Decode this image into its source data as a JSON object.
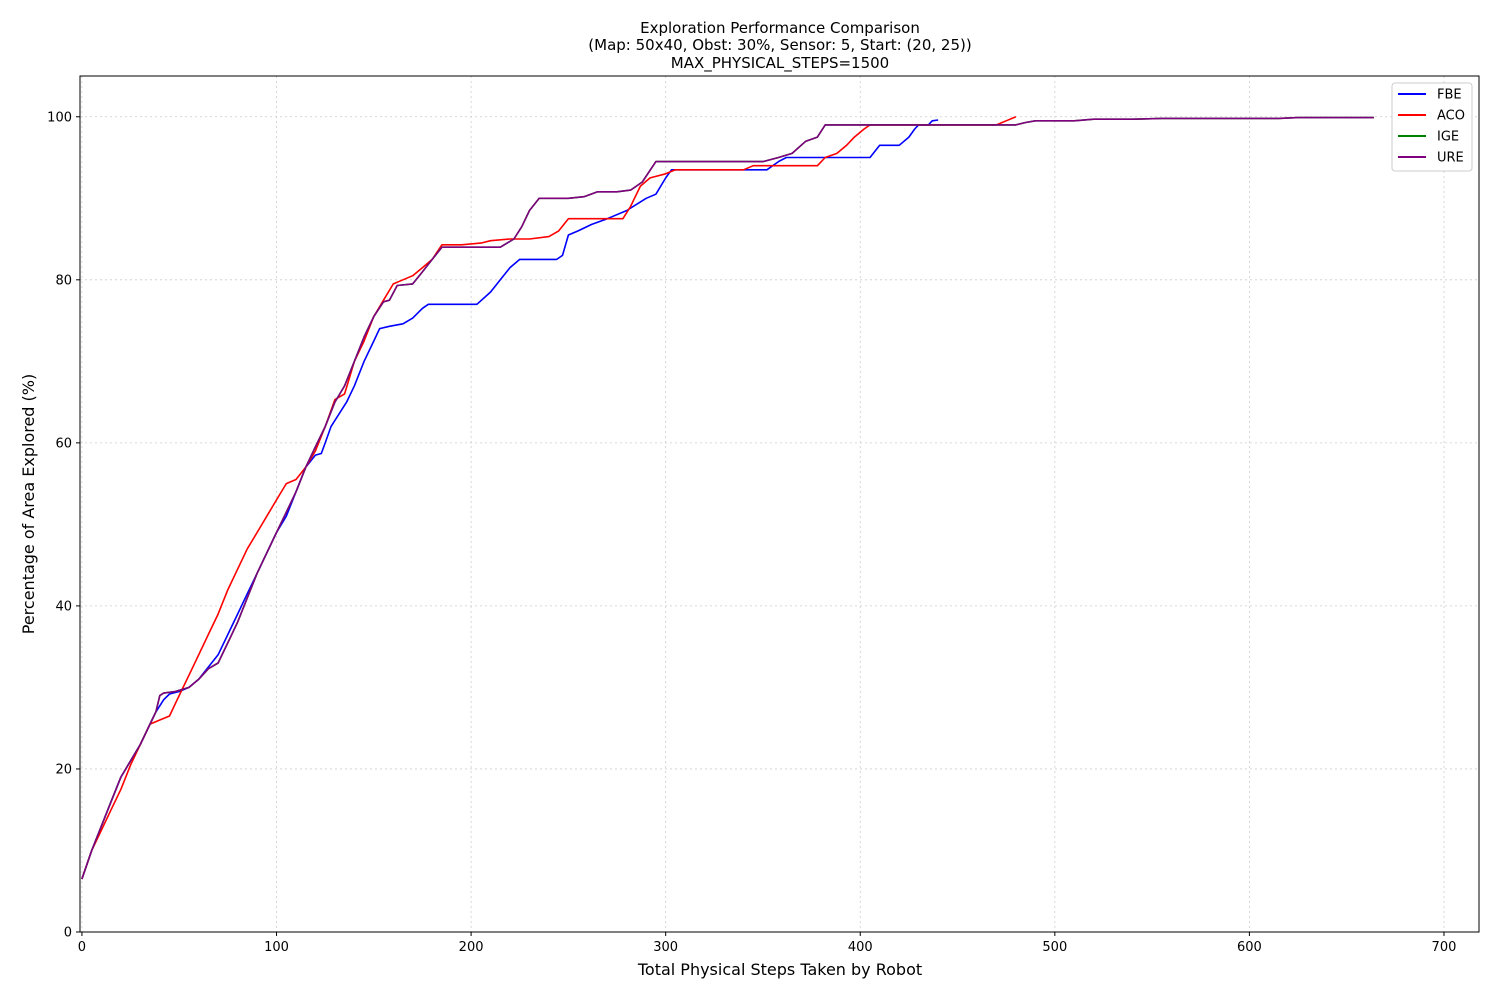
{
  "chart_data": {
    "type": "line",
    "title_lines": [
      "Exploration Performance Comparison",
      "(Map: 50x40, Obst: 30%, Sensor: 5, Start: (20, 25))",
      "MAX_PHYSICAL_STEPS=1500"
    ],
    "xlabel": "Total Physical Steps Taken by Robot",
    "ylabel": "Percentage of Area Explored (%)",
    "xlim": [
      -1,
      718
    ],
    "ylim": [
      0,
      105
    ],
    "xticks": [
      0,
      100,
      200,
      300,
      400,
      500,
      600,
      700
    ],
    "yticks": [
      0,
      20,
      40,
      60,
      80,
      100
    ],
    "grid": true,
    "legend_position": "top-right",
    "series": [
      {
        "name": "FBE",
        "color": "#0000ff",
        "points": [
          [
            0,
            6.5
          ],
          [
            5,
            10
          ],
          [
            10,
            13
          ],
          [
            15,
            16
          ],
          [
            20,
            19
          ],
          [
            25,
            21
          ],
          [
            30,
            23
          ],
          [
            35,
            25.5
          ],
          [
            38,
            27
          ],
          [
            42,
            28.5
          ],
          [
            45,
            29.2
          ],
          [
            50,
            29.5
          ],
          [
            55,
            30
          ],
          [
            60,
            31
          ],
          [
            65,
            32.5
          ],
          [
            70,
            34
          ],
          [
            75,
            36.5
          ],
          [
            80,
            39
          ],
          [
            85,
            41.5
          ],
          [
            90,
            44
          ],
          [
            95,
            46.5
          ],
          [
            100,
            49
          ],
          [
            105,
            51
          ],
          [
            110,
            54
          ],
          [
            115,
            57
          ],
          [
            120,
            58.5
          ],
          [
            123,
            58.7
          ],
          [
            125,
            60
          ],
          [
            128,
            62
          ],
          [
            132,
            63.5
          ],
          [
            136,
            65
          ],
          [
            140,
            67
          ],
          [
            145,
            70
          ],
          [
            150,
            72.5
          ],
          [
            153,
            74
          ],
          [
            158,
            74.3
          ],
          [
            165,
            74.6
          ],
          [
            170,
            75.3
          ],
          [
            175,
            76.5
          ],
          [
            178,
            77
          ],
          [
            185,
            77
          ],
          [
            195,
            77
          ],
          [
            203,
            77
          ],
          [
            210,
            78.5
          ],
          [
            215,
            80
          ],
          [
            220,
            81.5
          ],
          [
            225,
            82.5
          ],
          [
            235,
            82.5
          ],
          [
            244,
            82.5
          ],
          [
            247,
            83
          ],
          [
            250,
            85.5
          ],
          [
            255,
            86
          ],
          [
            262,
            86.8
          ],
          [
            270,
            87.5
          ],
          [
            280,
            88.5
          ],
          [
            290,
            90
          ],
          [
            295,
            90.5
          ],
          [
            300,
            92.5
          ],
          [
            303,
            93.5
          ],
          [
            315,
            93.5
          ],
          [
            330,
            93.5
          ],
          [
            345,
            93.5
          ],
          [
            352,
            93.5
          ],
          [
            358,
            94.5
          ],
          [
            362,
            95
          ],
          [
            375,
            95
          ],
          [
            390,
            95
          ],
          [
            400,
            95
          ],
          [
            405,
            95
          ],
          [
            410,
            96.5
          ],
          [
            420,
            96.5
          ],
          [
            425,
            97.5
          ],
          [
            428,
            98.5
          ],
          [
            430,
            99
          ],
          [
            435,
            99
          ],
          [
            437,
            99.5
          ],
          [
            440,
            99.6
          ]
        ]
      },
      {
        "name": "ACO",
        "color": "#ff0000",
        "points": [
          [
            0,
            6.5
          ],
          [
            5,
            10
          ],
          [
            10,
            12.5
          ],
          [
            15,
            15
          ],
          [
            20,
            17.5
          ],
          [
            25,
            20.5
          ],
          [
            30,
            23
          ],
          [
            35,
            25.5
          ],
          [
            40,
            26
          ],
          [
            45,
            26.5
          ],
          [
            48,
            28
          ],
          [
            52,
            30
          ],
          [
            55,
            31.5
          ],
          [
            60,
            34
          ],
          [
            65,
            36.5
          ],
          [
            70,
            39
          ],
          [
            75,
            42
          ],
          [
            80,
            44.5
          ],
          [
            85,
            47
          ],
          [
            90,
            49
          ],
          [
            95,
            51
          ],
          [
            100,
            53
          ],
          [
            105,
            55
          ],
          [
            110,
            55.5
          ],
          [
            115,
            57
          ],
          [
            120,
            59
          ],
          [
            125,
            62
          ],
          [
            130,
            65.3
          ],
          [
            135,
            66
          ],
          [
            140,
            70
          ],
          [
            145,
            72.5
          ],
          [
            150,
            75.5
          ],
          [
            155,
            77.5
          ],
          [
            160,
            79.5
          ],
          [
            165,
            80
          ],
          [
            170,
            80.5
          ],
          [
            175,
            81.5
          ],
          [
            180,
            82.5
          ],
          [
            185,
            84.3
          ],
          [
            195,
            84.3
          ],
          [
            205,
            84.5
          ],
          [
            210,
            84.8
          ],
          [
            220,
            85
          ],
          [
            230,
            85
          ],
          [
            240,
            85.3
          ],
          [
            245,
            86
          ],
          [
            250,
            87.5
          ],
          [
            260,
            87.5
          ],
          [
            270,
            87.5
          ],
          [
            278,
            87.5
          ],
          [
            282,
            89
          ],
          [
            287,
            91.5
          ],
          [
            292,
            92.5
          ],
          [
            300,
            93
          ],
          [
            305,
            93.5
          ],
          [
            315,
            93.5
          ],
          [
            330,
            93.5
          ],
          [
            340,
            93.5
          ],
          [
            345,
            94
          ],
          [
            360,
            94
          ],
          [
            370,
            94
          ],
          [
            378,
            94
          ],
          [
            382,
            95
          ],
          [
            388,
            95.5
          ],
          [
            393,
            96.5
          ],
          [
            397,
            97.5
          ],
          [
            402,
            98.5
          ],
          [
            405,
            99
          ],
          [
            430,
            99
          ],
          [
            450,
            99
          ],
          [
            470,
            99
          ],
          [
            475,
            99.5
          ],
          [
            480,
            100
          ]
        ]
      },
      {
        "name": "IGE",
        "color": "#008000",
        "points": [
          [
            0,
            6.5
          ],
          [
            5,
            10
          ],
          [
            10,
            13
          ],
          [
            15,
            16
          ],
          [
            20,
            19
          ],
          [
            25,
            21
          ],
          [
            30,
            23
          ],
          [
            35,
            25.5
          ],
          [
            38,
            27
          ],
          [
            40,
            29
          ],
          [
            42,
            29.3
          ],
          [
            48,
            29.5
          ],
          [
            55,
            30
          ],
          [
            60,
            31
          ],
          [
            65,
            32.3
          ],
          [
            70,
            33
          ],
          [
            75,
            35.5
          ],
          [
            80,
            38
          ],
          [
            85,
            41
          ],
          [
            90,
            44
          ],
          [
            95,
            46.5
          ],
          [
            100,
            49
          ],
          [
            105,
            51.5
          ],
          [
            110,
            54
          ],
          [
            115,
            57
          ],
          [
            120,
            59.5
          ],
          [
            125,
            62
          ],
          [
            130,
            65
          ],
          [
            135,
            67
          ],
          [
            140,
            70
          ],
          [
            145,
            73
          ],
          [
            150,
            75.5
          ],
          [
            155,
            77.3
          ],
          [
            158,
            77.5
          ],
          [
            162,
            79.3
          ],
          [
            170,
            79.5
          ],
          [
            175,
            81
          ],
          [
            180,
            82.5
          ],
          [
            185,
            84
          ],
          [
            195,
            84
          ],
          [
            205,
            84
          ],
          [
            215,
            84
          ],
          [
            222,
            85
          ],
          [
            226,
            86.5
          ],
          [
            230,
            88.5
          ],
          [
            235,
            90
          ],
          [
            240,
            90
          ],
          [
            250,
            90
          ],
          [
            258,
            90.2
          ],
          [
            265,
            90.8
          ],
          [
            275,
            90.8
          ],
          [
            282,
            91
          ],
          [
            288,
            92
          ],
          [
            295,
            94.5
          ],
          [
            310,
            94.5
          ],
          [
            330,
            94.5
          ],
          [
            350,
            94.5
          ],
          [
            358,
            95
          ],
          [
            365,
            95.5
          ],
          [
            372,
            97
          ],
          [
            378,
            97.5
          ],
          [
            382,
            99
          ],
          [
            395,
            99
          ],
          [
            410,
            99
          ],
          [
            430,
            99
          ],
          [
            450,
            99
          ],
          [
            470,
            99
          ],
          [
            480,
            99
          ],
          [
            485,
            99.3
          ],
          [
            490,
            99.5
          ],
          [
            510,
            99.5
          ],
          [
            520,
            99.7
          ],
          [
            540,
            99.7
          ],
          [
            555,
            99.8
          ],
          [
            580,
            99.8
          ],
          [
            600,
            99.8
          ],
          [
            615,
            99.8
          ],
          [
            625,
            99.9
          ],
          [
            650,
            99.9
          ],
          [
            664,
            99.9
          ]
        ]
      },
      {
        "name": "URE",
        "color": "#800080",
        "points": [
          [
            0,
            6.5
          ],
          [
            5,
            10
          ],
          [
            10,
            13
          ],
          [
            15,
            16
          ],
          [
            20,
            19
          ],
          [
            25,
            21
          ],
          [
            30,
            23
          ],
          [
            35,
            25.5
          ],
          [
            38,
            27
          ],
          [
            40,
            29
          ],
          [
            42,
            29.3
          ],
          [
            48,
            29.5
          ],
          [
            55,
            30
          ],
          [
            60,
            31
          ],
          [
            65,
            32.3
          ],
          [
            70,
            33
          ],
          [
            75,
            35.5
          ],
          [
            80,
            38
          ],
          [
            85,
            41
          ],
          [
            90,
            44
          ],
          [
            95,
            46.5
          ],
          [
            100,
            49
          ],
          [
            105,
            51.5
          ],
          [
            110,
            54
          ],
          [
            115,
            57
          ],
          [
            120,
            59.5
          ],
          [
            125,
            62
          ],
          [
            130,
            65
          ],
          [
            135,
            67
          ],
          [
            140,
            70
          ],
          [
            145,
            73
          ],
          [
            150,
            75.5
          ],
          [
            155,
            77.3
          ],
          [
            158,
            77.5
          ],
          [
            162,
            79.3
          ],
          [
            170,
            79.5
          ],
          [
            175,
            81
          ],
          [
            180,
            82.5
          ],
          [
            185,
            84
          ],
          [
            195,
            84
          ],
          [
            205,
            84
          ],
          [
            215,
            84
          ],
          [
            222,
            85
          ],
          [
            226,
            86.5
          ],
          [
            230,
            88.5
          ],
          [
            235,
            90
          ],
          [
            240,
            90
          ],
          [
            250,
            90
          ],
          [
            258,
            90.2
          ],
          [
            265,
            90.8
          ],
          [
            275,
            90.8
          ],
          [
            282,
            91
          ],
          [
            288,
            92
          ],
          [
            295,
            94.5
          ],
          [
            310,
            94.5
          ],
          [
            330,
            94.5
          ],
          [
            350,
            94.5
          ],
          [
            358,
            95
          ],
          [
            365,
            95.5
          ],
          [
            372,
            97
          ],
          [
            378,
            97.5
          ],
          [
            382,
            99
          ],
          [
            395,
            99
          ],
          [
            410,
            99
          ],
          [
            430,
            99
          ],
          [
            450,
            99
          ],
          [
            470,
            99
          ],
          [
            480,
            99
          ],
          [
            485,
            99.3
          ],
          [
            490,
            99.5
          ],
          [
            510,
            99.5
          ],
          [
            520,
            99.7
          ],
          [
            540,
            99.7
          ],
          [
            555,
            99.8
          ],
          [
            580,
            99.8
          ],
          [
            600,
            99.8
          ],
          [
            615,
            99.8
          ],
          [
            625,
            99.9
          ],
          [
            650,
            99.9
          ],
          [
            664,
            99.9
          ]
        ]
      }
    ]
  }
}
